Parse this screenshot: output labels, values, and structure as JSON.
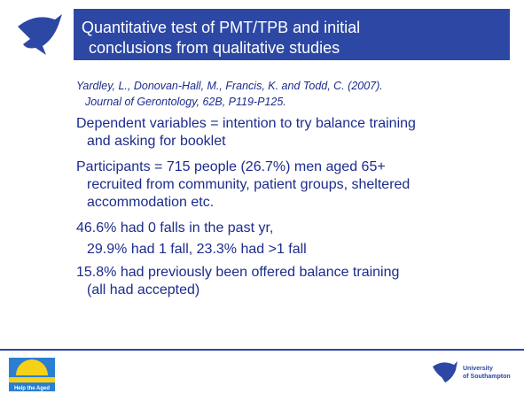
{
  "slide": {
    "title": [
      "Quantitative test of PMT/TPB and initial",
      "conclusions from qualitative studies"
    ],
    "citation": [
      "Yardley, L., Donovan-Hall, M., Francis, K. and Todd, C. (2007).",
      "Journal of Gerontology, 62B, P119-P125."
    ],
    "items": [
      [
        "Dependent variables = intention to try balance training",
        "and asking for booklet"
      ],
      [
        "Participants = 715 people (26.7%) men aged 65+",
        "recruited from community, patient groups, sheltered",
        "accommodation etc."
      ],
      [
        "46.6% had 0 falls in the past yr,"
      ],
      [
        "29.9% had 1 fall, 23.3% had >1 fall"
      ],
      [
        "15.8% had previously been offered balance training",
        "(all had accepted)"
      ]
    ],
    "footer": {
      "left_logo": "Help the Aged",
      "right_logo": [
        "University",
        "of Southampton"
      ]
    }
  }
}
